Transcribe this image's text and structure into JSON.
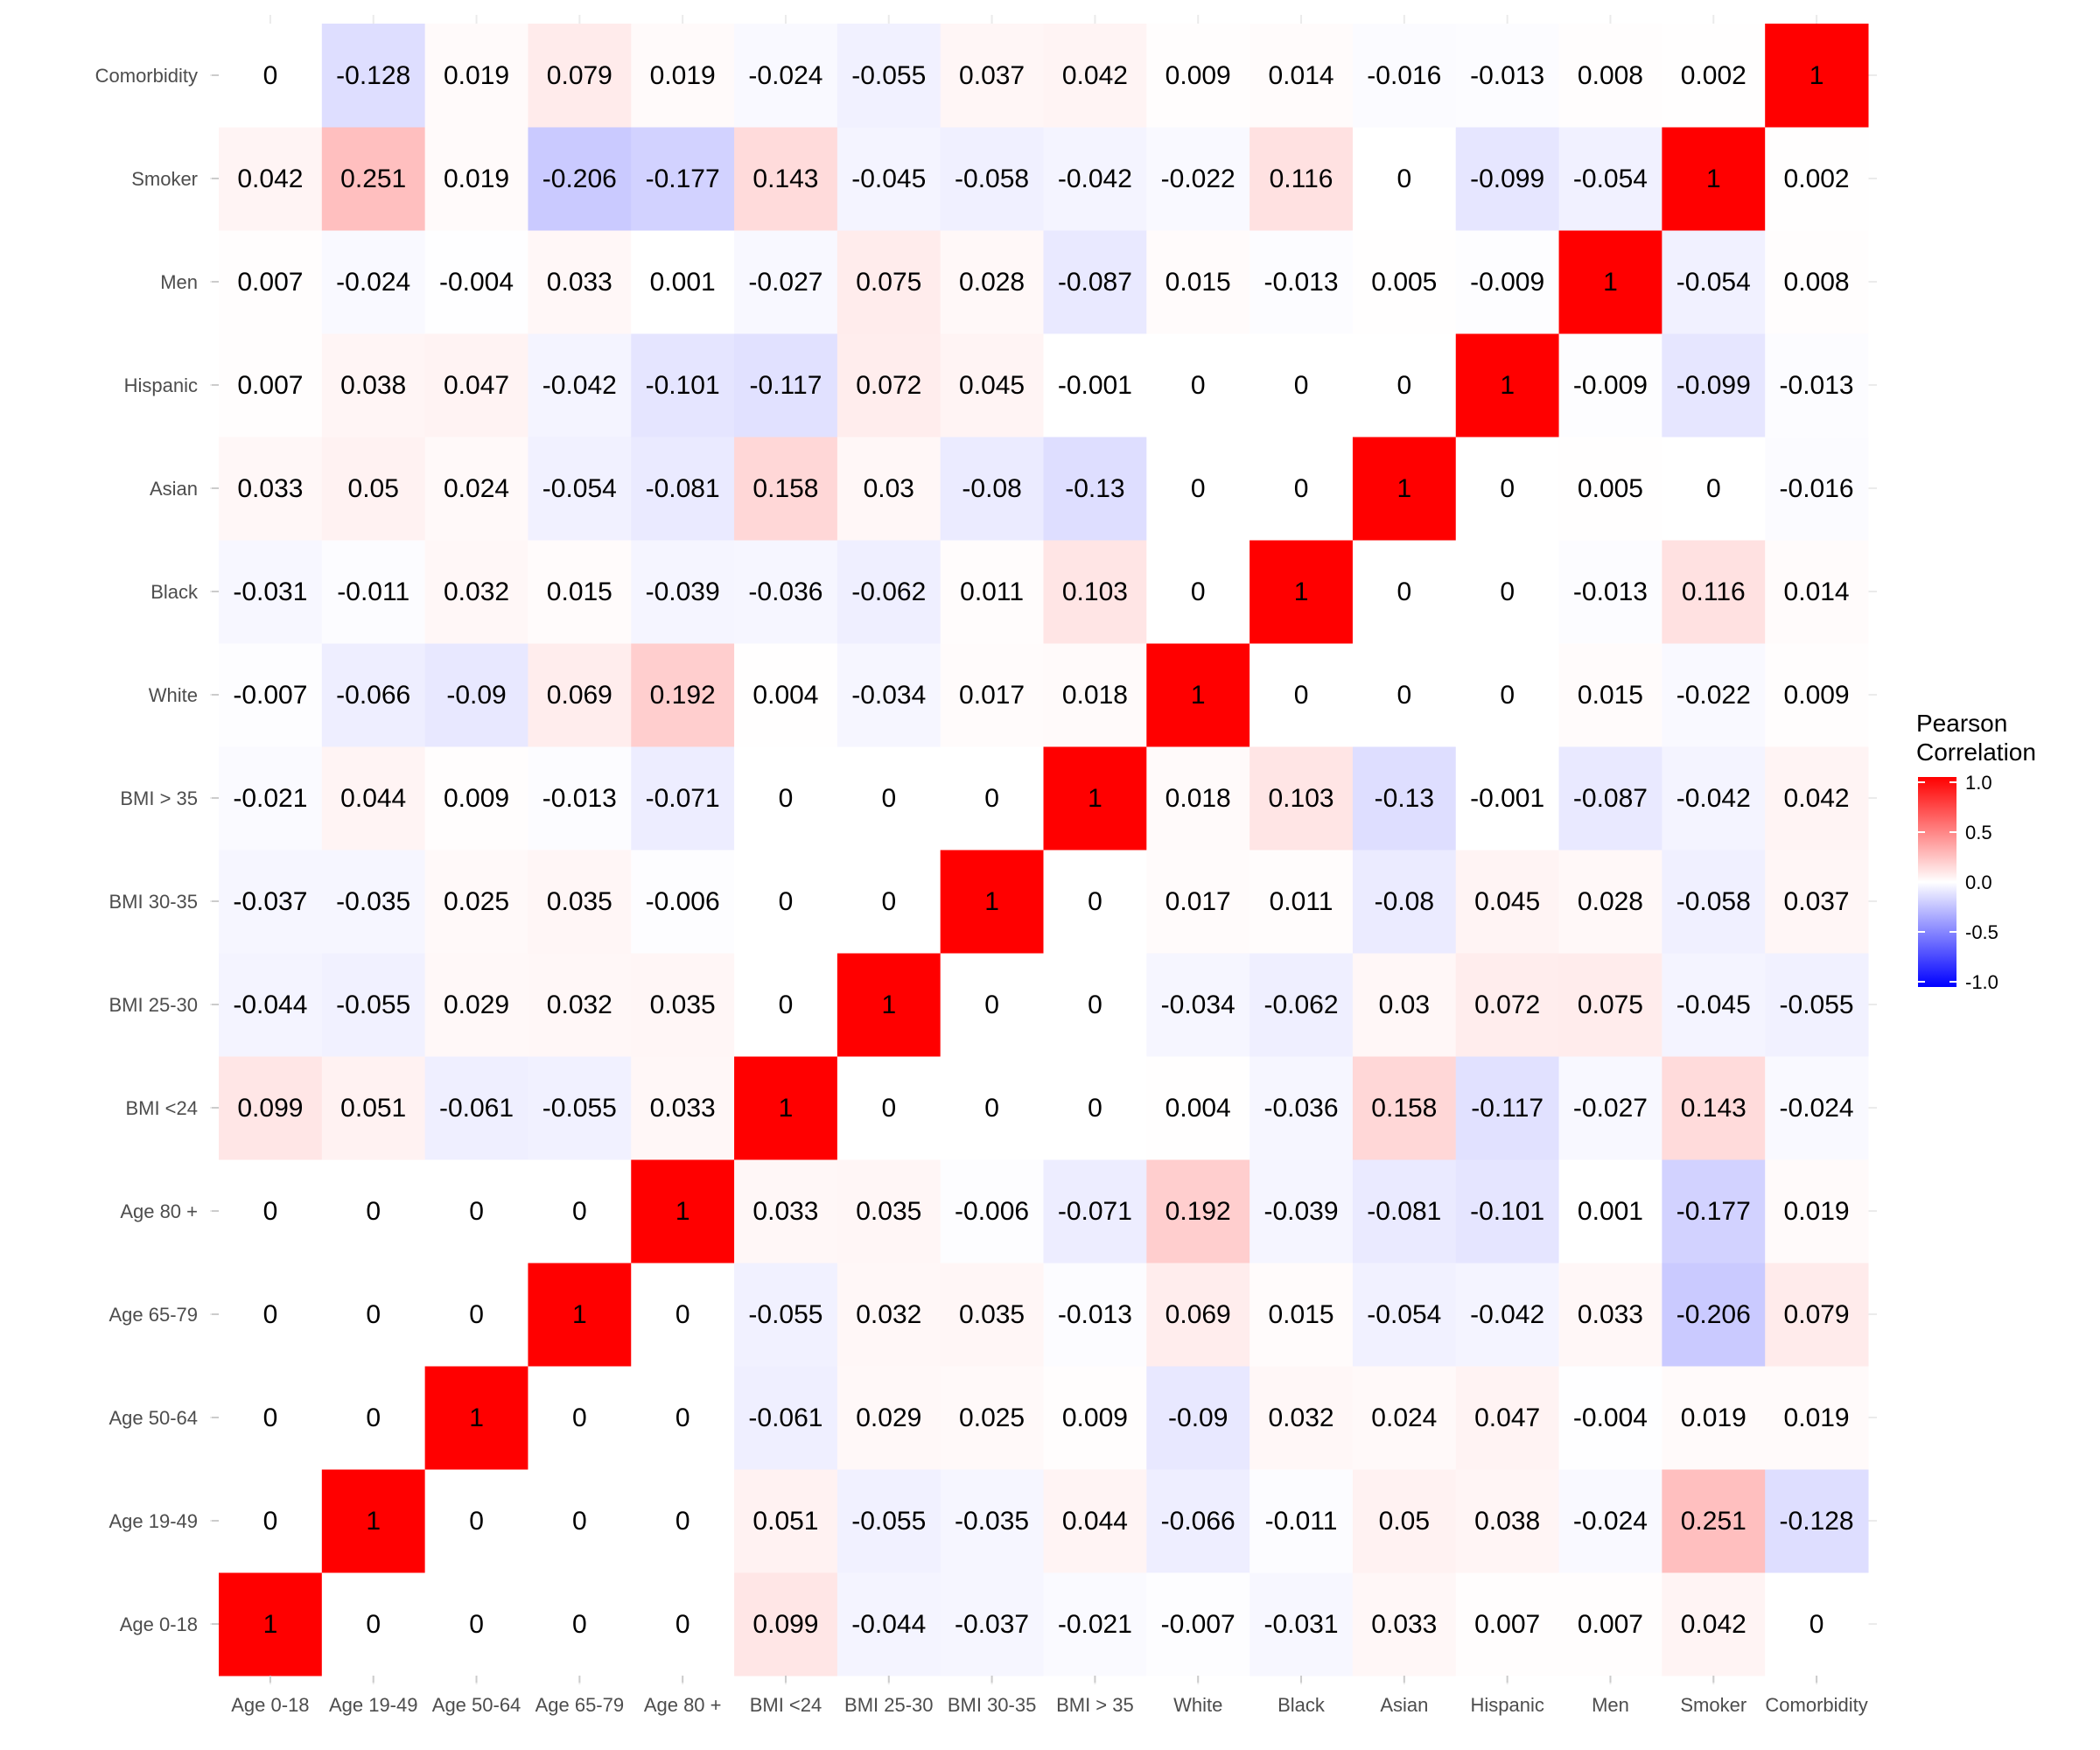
{
  "chart_data": {
    "type": "heatmap",
    "title": "",
    "xlabel": "",
    "ylabel": "",
    "x_categories": [
      "Age 0-18",
      "Age 19-49",
      "Age 50-64",
      "Age 65-79",
      "Age 80 +",
      "BMI <24",
      "BMI 25-30",
      "BMI 30-35",
      "BMI > 35",
      "White",
      "Black",
      "Asian",
      "Hispanic",
      "Men",
      "Smoker",
      "Comorbidity"
    ],
    "y_categories_bottom_to_top": [
      "Age 0-18",
      "Age 19-49",
      "Age 50-64",
      "Age 65-79",
      "Age 80 +",
      "BMI <24",
      "BMI 25-30",
      "BMI 30-35",
      "BMI > 35",
      "White",
      "Black",
      "Asian",
      "Hispanic",
      "Men",
      "Smoker",
      "Comorbidity"
    ],
    "values_rows_bottom_to_top": [
      [
        "1",
        "0",
        "0",
        "0",
        "0",
        "0.099",
        "-0.044",
        "-0.037",
        "-0.021",
        "-0.007",
        "-0.031",
        "0.033",
        "0.007",
        "0.007",
        "0.042",
        "0"
      ],
      [
        "0",
        "1",
        "0",
        "0",
        "0",
        "0.051",
        "-0.055",
        "-0.035",
        "0.044",
        "-0.066",
        "-0.011",
        "0.05",
        "0.038",
        "-0.024",
        "0.251",
        "-0.128"
      ],
      [
        "0",
        "0",
        "1",
        "0",
        "0",
        "-0.061",
        "0.029",
        "0.025",
        "0.009",
        "-0.09",
        "0.032",
        "0.024",
        "0.047",
        "-0.004",
        "0.019",
        "0.019"
      ],
      [
        "0",
        "0",
        "0",
        "1",
        "0",
        "-0.055",
        "0.032",
        "0.035",
        "-0.013",
        "0.069",
        "0.015",
        "-0.054",
        "-0.042",
        "0.033",
        "-0.206",
        "0.079"
      ],
      [
        "0",
        "0",
        "0",
        "0",
        "1",
        "0.033",
        "0.035",
        "-0.006",
        "-0.071",
        "0.192",
        "-0.039",
        "-0.081",
        "-0.101",
        "0.001",
        "-0.177",
        "0.019"
      ],
      [
        "0.099",
        "0.051",
        "-0.061",
        "-0.055",
        "0.033",
        "1",
        "0",
        "0",
        "0",
        "0.004",
        "-0.036",
        "0.158",
        "-0.117",
        "-0.027",
        "0.143",
        "-0.024"
      ],
      [
        "-0.044",
        "-0.055",
        "0.029",
        "0.032",
        "0.035",
        "0",
        "1",
        "0",
        "0",
        "-0.034",
        "-0.062",
        "0.03",
        "0.072",
        "0.075",
        "-0.045",
        "-0.055"
      ],
      [
        "-0.037",
        "-0.035",
        "0.025",
        "0.035",
        "-0.006",
        "0",
        "0",
        "1",
        "0",
        "0.017",
        "0.011",
        "-0.08",
        "0.045",
        "0.028",
        "-0.058",
        "0.037"
      ],
      [
        "-0.021",
        "0.044",
        "0.009",
        "-0.013",
        "-0.071",
        "0",
        "0",
        "0",
        "1",
        "0.018",
        "0.103",
        "-0.13",
        "-0.001",
        "-0.087",
        "-0.042",
        "0.042"
      ],
      [
        "-0.007",
        "-0.066",
        "-0.09",
        "0.069",
        "0.192",
        "0.004",
        "-0.034",
        "0.017",
        "0.018",
        "1",
        "0",
        "0",
        "0",
        "0.015",
        "-0.022",
        "0.009"
      ],
      [
        "-0.031",
        "-0.011",
        "0.032",
        "0.015",
        "-0.039",
        "-0.036",
        "-0.062",
        "0.011",
        "0.103",
        "0",
        "1",
        "0",
        "0",
        "-0.013",
        "0.116",
        "0.014"
      ],
      [
        "0.033",
        "0.05",
        "0.024",
        "-0.054",
        "-0.081",
        "0.158",
        "0.03",
        "-0.08",
        "-0.13",
        "0",
        "0",
        "1",
        "0",
        "0.005",
        "0",
        "-0.016"
      ],
      [
        "0.007",
        "0.038",
        "0.047",
        "-0.042",
        "-0.101",
        "-0.117",
        "0.072",
        "0.045",
        "-0.001",
        "0",
        "0",
        "0",
        "1",
        "-0.009",
        "-0.099",
        "-0.013"
      ],
      [
        "0.007",
        "-0.024",
        "-0.004",
        "0.033",
        "0.001",
        "-0.027",
        "0.075",
        "0.028",
        "-0.087",
        "0.015",
        "-0.013",
        "0.005",
        "-0.009",
        "1",
        "-0.054",
        "0.008"
      ],
      [
        "0.042",
        "0.251",
        "0.019",
        "-0.206",
        "-0.177",
        "0.143",
        "-0.045",
        "-0.058",
        "-0.042",
        "-0.022",
        "0.116",
        "0",
        "-0.099",
        "-0.054",
        "1",
        "0.002"
      ],
      [
        "0",
        "-0.128",
        "0.019",
        "0.079",
        "0.019",
        "-0.024",
        "-0.055",
        "0.037",
        "0.042",
        "0.009",
        "0.014",
        "-0.016",
        "-0.013",
        "0.008",
        "0.002",
        "1"
      ]
    ],
    "color_scale": {
      "low": "#0000FF",
      "mid": "#FFFFFF",
      "high": "#FF0000",
      "limits": [
        -1,
        1
      ]
    },
    "legend": {
      "title_lines": [
        "Pearson",
        "Correlation"
      ],
      "ticks": [
        "1.0",
        "0.5",
        "0.0",
        "-0.5",
        "-1.0"
      ],
      "tick_values": [
        1.0,
        0.5,
        0.0,
        -0.5,
        -1.0
      ],
      "placement": "right"
    },
    "grid": true
  }
}
